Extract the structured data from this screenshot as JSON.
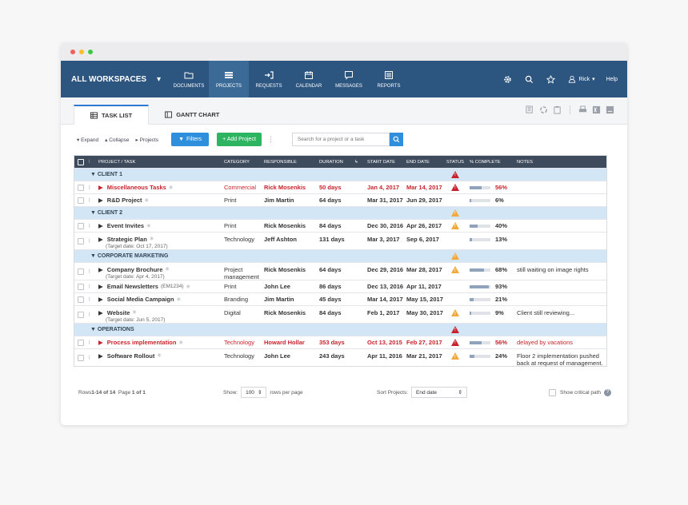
{
  "nav": {
    "workspace": "ALL WORKSPACES",
    "tabs": [
      "DOCUMENTS",
      "PROJECTS",
      "REQUESTS",
      "CALENDAR",
      "MESSAGES",
      "REPORTS"
    ],
    "user": "Rick",
    "help": "Help"
  },
  "subtabs": [
    "TASK LIST",
    "GANTT CHART"
  ],
  "toolbar": {
    "expand": "▾ Expand",
    "collapse": "▴ Collapse",
    "projects": "▸ Projects",
    "filters": "Filters",
    "add": "+ Add Project",
    "search_placeholder": "Search for a project or a task"
  },
  "columns": {
    "project": "PROJECT / TASK",
    "category": "CATEGORY",
    "responsible": "RESPONSIBLE",
    "duration": "DURATION",
    "start": "START DATE",
    "end": "END DATE",
    "status": "STATUS",
    "complete": "% COMPLETE",
    "notes": "NOTES"
  },
  "rows": [
    {
      "type": "group",
      "name": "▼ CLIENT 1",
      "status": "red"
    },
    {
      "type": "task",
      "name": "Miscellaneous Tasks",
      "red": true,
      "category": "Commercial",
      "responsible": "Rick Mosenkis",
      "duration": "50 days",
      "start": "Jan 4, 2017",
      "end": "Mar 14, 2017",
      "status": "red",
      "pct": 56,
      "pct_label": "56%",
      "notes": ""
    },
    {
      "type": "task",
      "name": "R&D Project",
      "red": false,
      "category": "Print",
      "responsible": "Jim Martin",
      "duration": "64 days",
      "start": "Mar 31, 2017",
      "end": "Jun 29, 2017",
      "status": "",
      "pct": 6,
      "pct_label": "6%",
      "notes": ""
    },
    {
      "type": "group",
      "name": "▼ CLIENT 2",
      "status": "yellow"
    },
    {
      "type": "task",
      "name": "Event Invites",
      "red": false,
      "category": "Print",
      "responsible": "Rick Mosenkis",
      "duration": "84 days",
      "start": "Dec 30, 2016",
      "end": "Apr 26, 2017",
      "status": "yellow",
      "pct": 40,
      "pct_label": "40%",
      "notes": ""
    },
    {
      "type": "task2",
      "name": "Strategic Plan",
      "sub": "(Target date: Oct 17, 2017)",
      "red": false,
      "category": "Technology",
      "responsible": "Jeff Ashton",
      "duration": "131 days",
      "start": "Mar 3, 2017",
      "end": "Sep 6, 2017",
      "status": "",
      "pct": 13,
      "pct_label": "13%",
      "notes": ""
    },
    {
      "type": "group",
      "name": "▼ CORPORATE MARKETING",
      "status": "yellow"
    },
    {
      "type": "task2",
      "name": "Company Brochure",
      "sub": "(Target date: Apr 4, 2017)",
      "red": false,
      "category": "Project management",
      "responsible": "Rick Mosenkis",
      "duration": "64 days",
      "start": "Dec 29, 2016",
      "end": "Mar 28, 2017",
      "status": "yellow",
      "pct": 68,
      "pct_label": "68%",
      "notes": "still waiting on image rights"
    },
    {
      "type": "task",
      "name": "Email Newsletters",
      "code": "(EM1234)",
      "red": false,
      "category": "Print",
      "responsible": "John Lee",
      "duration": "86 days",
      "start": "Dec 13, 2016",
      "end": "Apr 11, 2017",
      "status": "",
      "pct": 93,
      "pct_label": "93%",
      "notes": ""
    },
    {
      "type": "task",
      "name": "Social Media Campaign",
      "red": false,
      "category": "Branding",
      "responsible": "Jim Martin",
      "duration": "45 days",
      "start": "Mar 14, 2017",
      "end": "May 15, 2017",
      "status": "",
      "pct": 21,
      "pct_label": "21%",
      "notes": ""
    },
    {
      "type": "task2",
      "name": "Website",
      "sub": "(Target date: Jun 5, 2017)",
      "red": false,
      "category": "Digital",
      "responsible": "Rick Mosenkis",
      "duration": "84 days",
      "start": "Feb 1, 2017",
      "end": "May 30, 2017",
      "status": "yellow",
      "pct": 9,
      "pct_label": "9%",
      "notes": "Client still reviewing..."
    },
    {
      "type": "group",
      "name": "▼ OPERATIONS",
      "status": "red"
    },
    {
      "type": "task",
      "name": "Process implementation",
      "red": true,
      "category": "Technology",
      "responsible": "Howard Hollar",
      "duration": "353 days",
      "start": "Oct 13, 2015",
      "end": "Feb 27, 2017",
      "status": "red",
      "pct": 56,
      "pct_label": "56%",
      "notes": "delayed by vacations",
      "notes_red": true
    },
    {
      "type": "task2",
      "name": "Software Rollout",
      "sub": "",
      "red": false,
      "category": "Technology",
      "responsible": "John Lee",
      "duration": "243 days",
      "start": "Apr 11, 2016",
      "end": "Mar 21, 2017",
      "status": "yellow",
      "pct": 24,
      "pct_label": "24%",
      "notes": "Floor 2 implementation pushed back at request of management."
    }
  ],
  "footer": {
    "rows_prefix": "Rows ",
    "rows_range": "1-14 of 14",
    "page_prefix": "  Page ",
    "page": "1 of 1",
    "show": "Show:",
    "per_page": "100",
    "rows_per_page": "rows per page",
    "sort_label": "Sort Projects:",
    "sort_value": "End date",
    "critical": "Show critical path"
  },
  "colors": {
    "nav": "#2c5580",
    "red": "#c8232c",
    "yellow": "#f2a93b",
    "blue": "#2f8fdc",
    "green": "#2db460"
  }
}
